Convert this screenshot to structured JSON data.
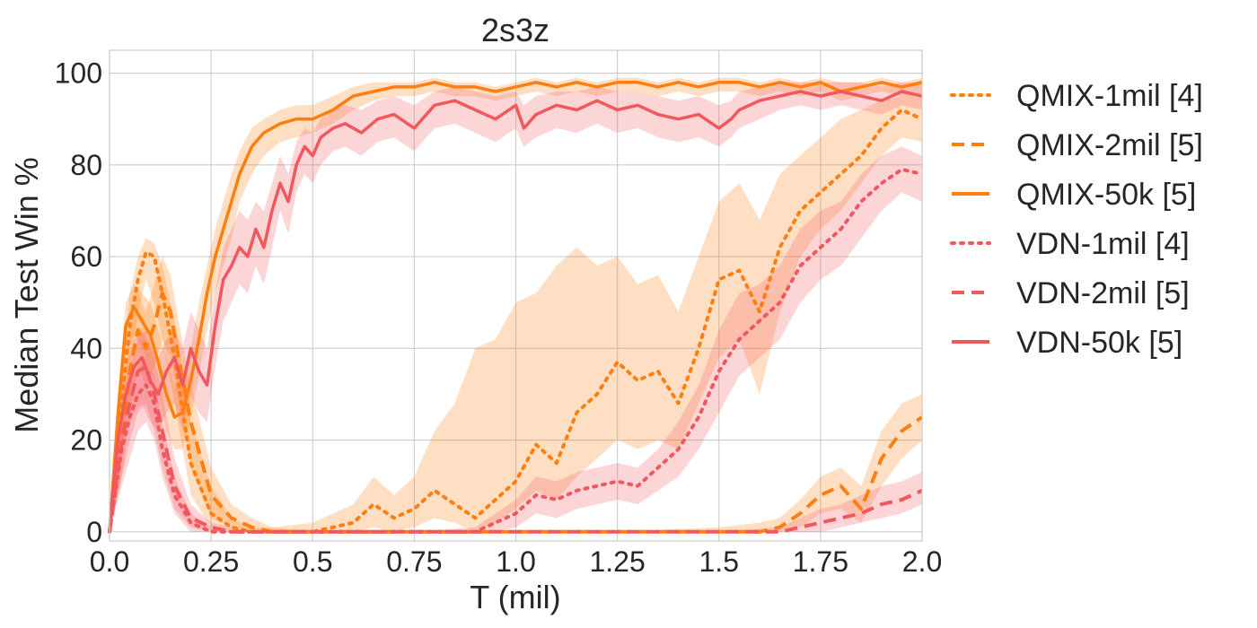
{
  "chart_data": {
    "type": "line",
    "title": "2s3z",
    "xlabel": "T (mil)",
    "ylabel": "Median Test Win %",
    "xlim": [
      0,
      2.0
    ],
    "ylim": [
      -2,
      105
    ],
    "xticks": [
      0,
      0.25,
      0.5,
      0.75,
      1.0,
      1.25,
      1.5,
      1.75,
      2.0
    ],
    "xtick_labels": [
      "0.0",
      "0.25",
      "0.5",
      "0.75",
      "1.0",
      "1.25",
      "1.5",
      "1.75",
      "2.0"
    ],
    "yticks": [
      0,
      20,
      40,
      60,
      80,
      100
    ],
    "ytick_labels": [
      "0",
      "20",
      "40",
      "60",
      "80",
      "100"
    ],
    "grid": true,
    "legend_position": "outside-right",
    "series": [
      {
        "name": "QMIX-1mil [4]",
        "color": "#ff7f0e",
        "dash": "dotted",
        "x": [
          0,
          0.03,
          0.05,
          0.07,
          0.09,
          0.11,
          0.13,
          0.16,
          0.2,
          0.25,
          0.3,
          0.35,
          0.4,
          0.5,
          0.6,
          0.65,
          0.7,
          0.75,
          0.8,
          0.85,
          0.9,
          0.95,
          1.0,
          1.05,
          1.1,
          1.15,
          1.2,
          1.25,
          1.3,
          1.35,
          1.4,
          1.45,
          1.5,
          1.55,
          1.6,
          1.65,
          1.7,
          1.75,
          1.8,
          1.85,
          1.9,
          1.95,
          2.0
        ],
        "y": [
          0,
          28,
          45,
          55,
          61,
          60,
          52,
          38,
          15,
          4,
          1,
          0,
          0,
          0,
          2,
          6,
          3,
          5,
          9,
          6,
          3,
          7,
          11,
          19,
          15,
          26,
          30,
          37,
          33,
          35,
          28,
          40,
          55,
          57,
          48,
          62,
          70,
          74,
          78,
          82,
          88,
          92,
          90
        ],
        "band_lower": [
          0,
          18,
          35,
          48,
          55,
          50,
          42,
          28,
          8,
          1,
          0,
          0,
          0,
          0,
          0,
          1,
          0,
          1,
          3,
          2,
          0,
          2,
          5,
          9,
          7,
          12,
          16,
          20,
          18,
          20,
          18,
          28,
          38,
          42,
          30,
          48,
          60,
          66,
          70,
          76,
          82,
          86,
          85
        ],
        "band_upper": [
          0,
          35,
          52,
          60,
          64,
          63,
          58,
          46,
          24,
          10,
          3,
          1,
          1,
          2,
          6,
          12,
          8,
          12,
          22,
          28,
          40,
          42,
          50,
          52,
          58,
          62,
          58,
          60,
          54,
          56,
          48,
          60,
          72,
          76,
          68,
          78,
          82,
          86,
          90,
          92,
          94,
          95,
          96
        ]
      },
      {
        "name": "QMIX-2mil [5]",
        "color": "#ff7f0e",
        "dash": "dashed",
        "x": [
          0,
          0.03,
          0.05,
          0.07,
          0.09,
          0.11,
          0.13,
          0.15,
          0.17,
          0.2,
          0.25,
          0.3,
          0.35,
          0.4,
          0.5,
          0.75,
          1.0,
          1.25,
          1.5,
          1.6,
          1.65,
          1.7,
          1.75,
          1.8,
          1.85,
          1.9,
          1.95,
          2.0
        ],
        "y": [
          0,
          20,
          35,
          44,
          40,
          45,
          52,
          48,
          38,
          24,
          8,
          3,
          1,
          0,
          0,
          0,
          0,
          0,
          0,
          0,
          1,
          4,
          8,
          10,
          5,
          16,
          22,
          25
        ],
        "band_lower": [
          0,
          12,
          26,
          36,
          32,
          36,
          42,
          38,
          28,
          14,
          3,
          1,
          0,
          0,
          0,
          0,
          0,
          0,
          0,
          0,
          0,
          1,
          4,
          5,
          2,
          10,
          16,
          20
        ],
        "band_upper": [
          0,
          28,
          44,
          52,
          48,
          54,
          60,
          56,
          46,
          32,
          14,
          6,
          3,
          1,
          0,
          0,
          0,
          0,
          1,
          2,
          3,
          7,
          12,
          14,
          10,
          22,
          28,
          30
        ]
      },
      {
        "name": "QMIX-50k [5]",
        "color": "#ff7f0e",
        "dash": "solid",
        "x": [
          0,
          0.02,
          0.04,
          0.06,
          0.08,
          0.1,
          0.12,
          0.14,
          0.16,
          0.18,
          0.2,
          0.22,
          0.24,
          0.26,
          0.28,
          0.3,
          0.32,
          0.35,
          0.38,
          0.42,
          0.46,
          0.5,
          0.55,
          0.6,
          0.65,
          0.7,
          0.75,
          0.8,
          0.85,
          0.9,
          0.95,
          1.0,
          1.05,
          1.1,
          1.15,
          1.2,
          1.25,
          1.3,
          1.35,
          1.4,
          1.45,
          1.5,
          1.55,
          1.6,
          1.65,
          1.7,
          1.75,
          1.8,
          1.85,
          1.9,
          1.95,
          2.0
        ],
        "y": [
          0,
          25,
          45,
          49,
          46,
          43,
          37,
          30,
          25,
          26,
          33,
          42,
          52,
          60,
          66,
          72,
          78,
          84,
          87,
          89,
          90,
          90,
          92,
          95,
          96,
          97,
          97,
          98,
          97,
          97,
          96,
          97,
          98,
          97,
          98,
          97,
          98,
          98,
          97,
          98,
          97,
          98,
          98,
          97,
          98,
          97,
          98,
          96,
          97,
          98,
          97,
          98
        ],
        "band_lower": [
          0,
          18,
          38,
          43,
          40,
          36,
          30,
          22,
          18,
          18,
          25,
          34,
          44,
          52,
          58,
          64,
          72,
          78,
          82,
          85,
          86,
          87,
          89,
          92,
          94,
          95,
          95,
          96,
          95,
          95,
          94,
          95,
          96,
          95,
          96,
          95,
          96,
          96,
          95,
          96,
          95,
          96,
          96,
          95,
          96,
          95,
          96,
          94,
          95,
          96,
          95,
          96
        ],
        "band_upper": [
          0,
          30,
          50,
          54,
          52,
          50,
          44,
          38,
          32,
          34,
          40,
          50,
          58,
          66,
          72,
          78,
          83,
          88,
          90,
          92,
          93,
          93,
          95,
          97,
          98,
          98,
          98,
          99,
          98,
          98,
          97,
          98,
          99,
          98,
          99,
          98,
          99,
          99,
          98,
          99,
          98,
          99,
          99,
          98,
          99,
          98,
          99,
          98,
          98,
          99,
          98,
          99
        ]
      },
      {
        "name": "VDN-1mil [4]",
        "color": "#f2575e",
        "dash": "dotted",
        "x": [
          0,
          0.03,
          0.05,
          0.07,
          0.09,
          0.11,
          0.13,
          0.16,
          0.2,
          0.25,
          0.3,
          0.35,
          0.4,
          0.5,
          0.75,
          0.9,
          0.95,
          1.0,
          1.05,
          1.1,
          1.15,
          1.2,
          1.25,
          1.3,
          1.35,
          1.4,
          1.45,
          1.5,
          1.55,
          1.6,
          1.65,
          1.7,
          1.75,
          1.8,
          1.85,
          1.9,
          1.95,
          2.0
        ],
        "y": [
          0,
          18,
          25,
          30,
          32,
          28,
          18,
          8,
          2,
          0,
          0,
          0,
          0,
          0,
          0,
          0,
          2,
          4,
          8,
          7,
          9,
          10,
          11,
          10,
          14,
          18,
          25,
          35,
          42,
          46,
          50,
          58,
          62,
          66,
          72,
          76,
          79,
          78
        ],
        "band_lower": [
          0,
          10,
          16,
          22,
          24,
          20,
          12,
          4,
          0,
          0,
          0,
          0,
          0,
          0,
          0,
          0,
          0,
          1,
          4,
          3,
          5,
          6,
          7,
          6,
          9,
          12,
          18,
          26,
          34,
          38,
          42,
          50,
          55,
          58,
          64,
          70,
          74,
          72
        ],
        "band_upper": [
          0,
          24,
          32,
          36,
          38,
          34,
          24,
          12,
          4,
          1,
          0,
          0,
          0,
          0,
          0,
          1,
          4,
          7,
          12,
          11,
          13,
          14,
          15,
          14,
          18,
          24,
          32,
          44,
          52,
          54,
          58,
          66,
          70,
          72,
          78,
          82,
          84,
          82
        ]
      },
      {
        "name": "VDN-2mil [5]",
        "color": "#f2575e",
        "dash": "dashed",
        "x": [
          0,
          0.03,
          0.05,
          0.07,
          0.09,
          0.11,
          0.13,
          0.16,
          0.2,
          0.25,
          0.3,
          0.35,
          0.4,
          0.5,
          1.0,
          1.5,
          1.65,
          1.7,
          1.75,
          1.8,
          1.85,
          1.9,
          1.95,
          2.0
        ],
        "y": [
          0,
          20,
          28,
          35,
          36,
          30,
          22,
          10,
          3,
          1,
          0,
          0,
          0,
          0,
          0,
          0,
          0,
          1,
          2,
          3,
          4,
          6,
          7,
          9
        ],
        "band_lower": [
          0,
          12,
          20,
          26,
          28,
          22,
          14,
          5,
          1,
          0,
          0,
          0,
          0,
          0,
          0,
          0,
          0,
          0,
          0,
          1,
          2,
          3,
          4,
          6
        ],
        "band_upper": [
          0,
          28,
          36,
          42,
          44,
          38,
          30,
          16,
          6,
          2,
          1,
          0,
          0,
          0,
          0,
          0,
          1,
          3,
          5,
          6,
          8,
          10,
          11,
          13
        ]
      },
      {
        "name": "VDN-50k [5]",
        "color": "#f2575e",
        "dash": "solid",
        "x": [
          0,
          0.02,
          0.04,
          0.06,
          0.08,
          0.1,
          0.12,
          0.14,
          0.16,
          0.18,
          0.2,
          0.22,
          0.24,
          0.26,
          0.28,
          0.3,
          0.32,
          0.34,
          0.36,
          0.38,
          0.4,
          0.42,
          0.44,
          0.46,
          0.48,
          0.5,
          0.52,
          0.55,
          0.58,
          0.62,
          0.66,
          0.7,
          0.75,
          0.8,
          0.85,
          0.9,
          0.95,
          1.0,
          1.02,
          1.05,
          1.1,
          1.15,
          1.2,
          1.25,
          1.3,
          1.35,
          1.4,
          1.45,
          1.5,
          1.53,
          1.55,
          1.6,
          1.65,
          1.7,
          1.75,
          1.8,
          1.85,
          1.9,
          1.95,
          2.0
        ],
        "y": [
          0,
          20,
          30,
          36,
          38,
          33,
          30,
          35,
          38,
          32,
          40,
          35,
          32,
          45,
          55,
          58,
          62,
          60,
          66,
          62,
          70,
          76,
          72,
          80,
          84,
          82,
          86,
          88,
          89,
          87,
          90,
          91,
          88,
          93,
          94,
          92,
          90,
          93,
          88,
          91,
          93,
          92,
          94,
          92,
          93,
          91,
          90,
          91,
          88,
          90,
          92,
          94,
          95,
          96,
          95,
          96,
          95,
          94,
          96,
          95
        ],
        "band_lower": [
          0,
          12,
          22,
          26,
          28,
          24,
          22,
          26,
          28,
          22,
          30,
          26,
          24,
          36,
          46,
          50,
          54,
          52,
          58,
          54,
          62,
          70,
          65,
          74,
          78,
          76,
          80,
          83,
          84,
          82,
          85,
          86,
          83,
          88,
          89,
          87,
          85,
          88,
          84,
          86,
          88,
          87,
          89,
          87,
          88,
          86,
          85,
          86,
          84,
          86,
          88,
          90,
          92,
          93,
          92,
          93,
          92,
          91,
          93,
          92
        ],
        "band_upper": [
          0,
          28,
          36,
          42,
          44,
          40,
          38,
          42,
          44,
          40,
          48,
          44,
          40,
          52,
          62,
          66,
          70,
          68,
          72,
          70,
          76,
          82,
          78,
          85,
          88,
          87,
          90,
          92,
          93,
          92,
          94,
          95,
          93,
          96,
          97,
          96,
          95,
          96,
          93,
          95,
          96,
          96,
          97,
          96,
          96,
          95,
          94,
          95,
          93,
          94,
          96,
          97,
          98,
          98,
          98,
          98,
          98,
          97,
          98,
          98
        ]
      }
    ]
  }
}
